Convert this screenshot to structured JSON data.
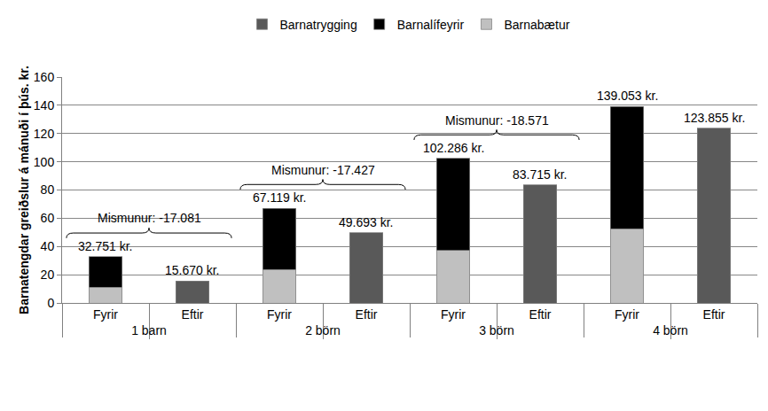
{
  "chart_data": {
    "type": "bar",
    "stacked": true,
    "y_label": "Barnatengdar greiðslur á mánuði í þús. kr.",
    "groups": [
      "1 barn",
      "1 barn",
      "2 börn",
      "2 börn",
      "3 börn",
      "3 börn",
      "4 börn",
      "4 börn"
    ],
    "categories": [
      "Fyrir",
      "Eftir",
      "Fyrir",
      "Eftir",
      "Fyrir",
      "Eftir",
      "Fyrir",
      "Eftir"
    ],
    "series": [
      {
        "name": "Barnabætur",
        "color": "#c0c0c0",
        "values": [
          11.094,
          null,
          23.805,
          null,
          37.315,
          null,
          52.425,
          null
        ]
      },
      {
        "name": "Barnalífeyrir",
        "color": "#000000",
        "values": [
          21.657,
          null,
          43.314,
          null,
          64.971,
          null,
          86.628,
          null
        ]
      },
      {
        "name": "Barnatrygging",
        "color": "#595959",
        "values": [
          null,
          15.67,
          null,
          49.693,
          null,
          83.715,
          null,
          123.855
        ]
      }
    ],
    "ylim": [
      0,
      160
    ],
    "yticks": [
      0,
      20,
      40,
      60,
      80,
      100,
      120,
      140,
      160
    ],
    "grid": true,
    "legend": "top",
    "annotations": [
      {
        "text": "32.751 kr.",
        "category": 0,
        "y": 32.751
      },
      {
        "text": "15.670 kr.",
        "category": 1,
        "y": 15.67
      },
      {
        "text": "67.119 kr.",
        "category": 2,
        "y": 67.119
      },
      {
        "text": "49.693 kr.",
        "category": 3,
        "y": 49.693
      },
      {
        "text": "102.286 kr.",
        "category": 4,
        "y": 102.286
      },
      {
        "text": "83.715 kr.",
        "category": 5,
        "y": 83.715
      },
      {
        "text": "139.053 kr.",
        "category": 6,
        "y": 139.053
      },
      {
        "text": "123.855 kr.",
        "category": 7,
        "y": 123.855
      }
    ],
    "differences": [
      {
        "text": "Mismunur: -17.081",
        "group": "1 barn"
      },
      {
        "text": "Mismunur: -17.427",
        "group": "2 börn"
      },
      {
        "text": "Mismunur: -18.571",
        "group": "3 börn"
      }
    ]
  }
}
